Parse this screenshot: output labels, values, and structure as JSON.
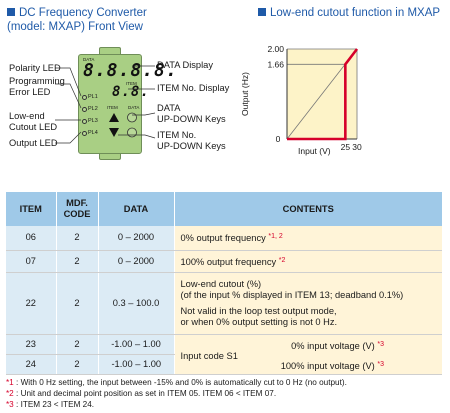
{
  "left_section": {
    "title_line1": "DC Frequency Converter",
    "title_line2": "(model: MXAP) Front View",
    "device": {
      "data_label": "DATA",
      "item_label": "ITEM",
      "data_digits": "8.8.8.8.",
      "item_digits": "8.8.",
      "pl_labels": [
        "PL1",
        "PL2",
        "PL3",
        "PL4"
      ],
      "key_item_label": "ITEM",
      "key_data_label": "DATA"
    },
    "callouts": {
      "polarity_led": "Polarity LED",
      "programming_error_led_1": "Programming",
      "programming_error_led_2": "Error LED",
      "low_end_cutout_led_1": "Low-end",
      "low_end_cutout_led_2": "Cutout LED",
      "output_led": "Output LED",
      "data_display": "DATA Display",
      "item_no_display": "ITEM No. Display",
      "data_keys_1": "DATA",
      "data_keys_2": "UP-DOWN Keys",
      "item_keys_1": "ITEM No.",
      "item_keys_2": "UP-DOWN Keys"
    }
  },
  "right_section": {
    "title": "Low-end cutout function in MXAP"
  },
  "chart_data": {
    "type": "line",
    "title": "Low-end cutout function in MXAP",
    "xlabel": "Input (V)",
    "ylabel": "Output (Hz)",
    "x_ticks": [
      "0",
      "25",
      "30"
    ],
    "y_ticks": [
      "2.00",
      "1.66"
    ],
    "series": [
      {
        "x": [
          0,
          25,
          25,
          30,
          30
        ],
        "y": [
          0,
          0,
          1.66,
          2.0,
          2.0
        ]
      }
    ],
    "colors": {
      "line": "#d6002a",
      "fill": "#fdf3c8",
      "guide": "#777777"
    }
  },
  "table": {
    "headers": {
      "item": "ITEM",
      "code_1": "MDF.",
      "code_2": "CODE",
      "data": "DATA",
      "contents": "CONTENTS"
    },
    "rows": [
      {
        "item": "06",
        "code": "2",
        "data": "0 – 2000",
        "contents": "0% output frequency",
        "note": "*1, 2"
      },
      {
        "item": "07",
        "code": "2",
        "data": "0 – 2000",
        "contents": "100% output frequency",
        "note": "*2"
      },
      {
        "item": "22",
        "code": "2",
        "data": "0.3 – 100.0",
        "contents_1": "Low-end cutout (%)",
        "contents_2": "(of the input % displayed in ITEM 13; deadband 0.1%)",
        "contents_3": "Not valid in the loop test output mode,",
        "contents_4": "or when 0% output setting is not 0 Hz."
      },
      {
        "item": "23",
        "code": "2",
        "data": "-1.00 – 1.00",
        "contents": "0% input voltage (V)",
        "note": "*3"
      },
      {
        "item": "24",
        "code": "2",
        "data": "-1.00 – 1.00",
        "contents": "100% input voltage (V)",
        "note": "*3"
      }
    ],
    "merged_label": "Input code S1"
  },
  "footnotes": [
    {
      "mark": "*1",
      "text": " : With 0 Hz setting, the input between -15% and 0% is automatically cut to 0 Hz (no output)."
    },
    {
      "mark": "*2",
      "text": " : Unit and decimal point position as set in ITEM 05.  ITEM 06 < ITEM 07."
    },
    {
      "mark": "*3",
      "text": " : ITEM 23 < ITEM 24."
    }
  ]
}
